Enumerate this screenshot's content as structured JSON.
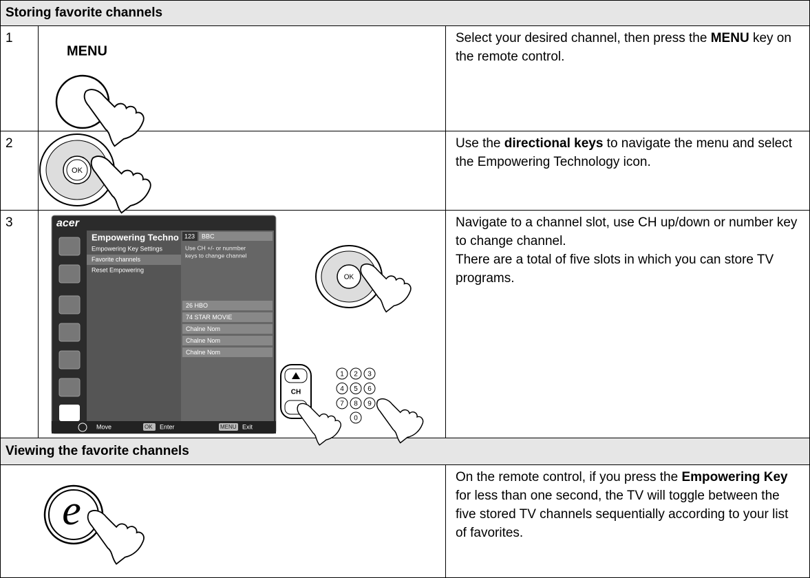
{
  "sections": [
    {
      "title": "Storing favorite channels",
      "steps": [
        {
          "number": "1",
          "image": {
            "key_label": "MENU"
          },
          "text": [
            "Select your desired channel, then press the ",
            "MENU",
            " key on the remote control."
          ]
        },
        {
          "number": "2",
          "image": {
            "ok": "OK"
          },
          "text": [
            "Use the ",
            "directional keys",
            " to navigate the menu and select the Empowering Technology icon."
          ]
        },
        {
          "number": "3",
          "image": {
            "logo": "acer",
            "menu_title": "Empowering Techno",
            "menu_items": [
              "Empowering Key Settings",
              "Favorite channels",
              "Reset Empowering"
            ],
            "channel_number": "123",
            "channel_name": "BBC",
            "hint": [
              "Use CH +/- or nunmber",
              "keys to change channel"
            ],
            "slots": [
              "26 HBO",
              "74 STAR MOVIE",
              "Chalne Nom",
              "Chalne Nom",
              "Chalne Nom"
            ],
            "footer": [
              "Move",
              "OK",
              "Enter",
              "MENU",
              "Exit"
            ],
            "ok": "OK",
            "ch": "CH",
            "digits": [
              "1",
              "2",
              "3",
              "4",
              "5",
              "6",
              "7",
              "8",
              "9",
              "0"
            ]
          },
          "text": [
            "Navigate to a channel slot, use CH up/down or number key to change channel.",
            "There are a total of five slots in which you can store TV programs."
          ]
        }
      ]
    },
    {
      "title": "Viewing the favorite channels",
      "steps": [
        {
          "image": {
            "key_label": "e"
          },
          "text": [
            "On the remote control, if you press the ",
            "Empowering Key",
            " for less than one second, the TV will toggle between the five stored TV channels sequentially according to your list of favorites."
          ]
        }
      ]
    }
  ]
}
